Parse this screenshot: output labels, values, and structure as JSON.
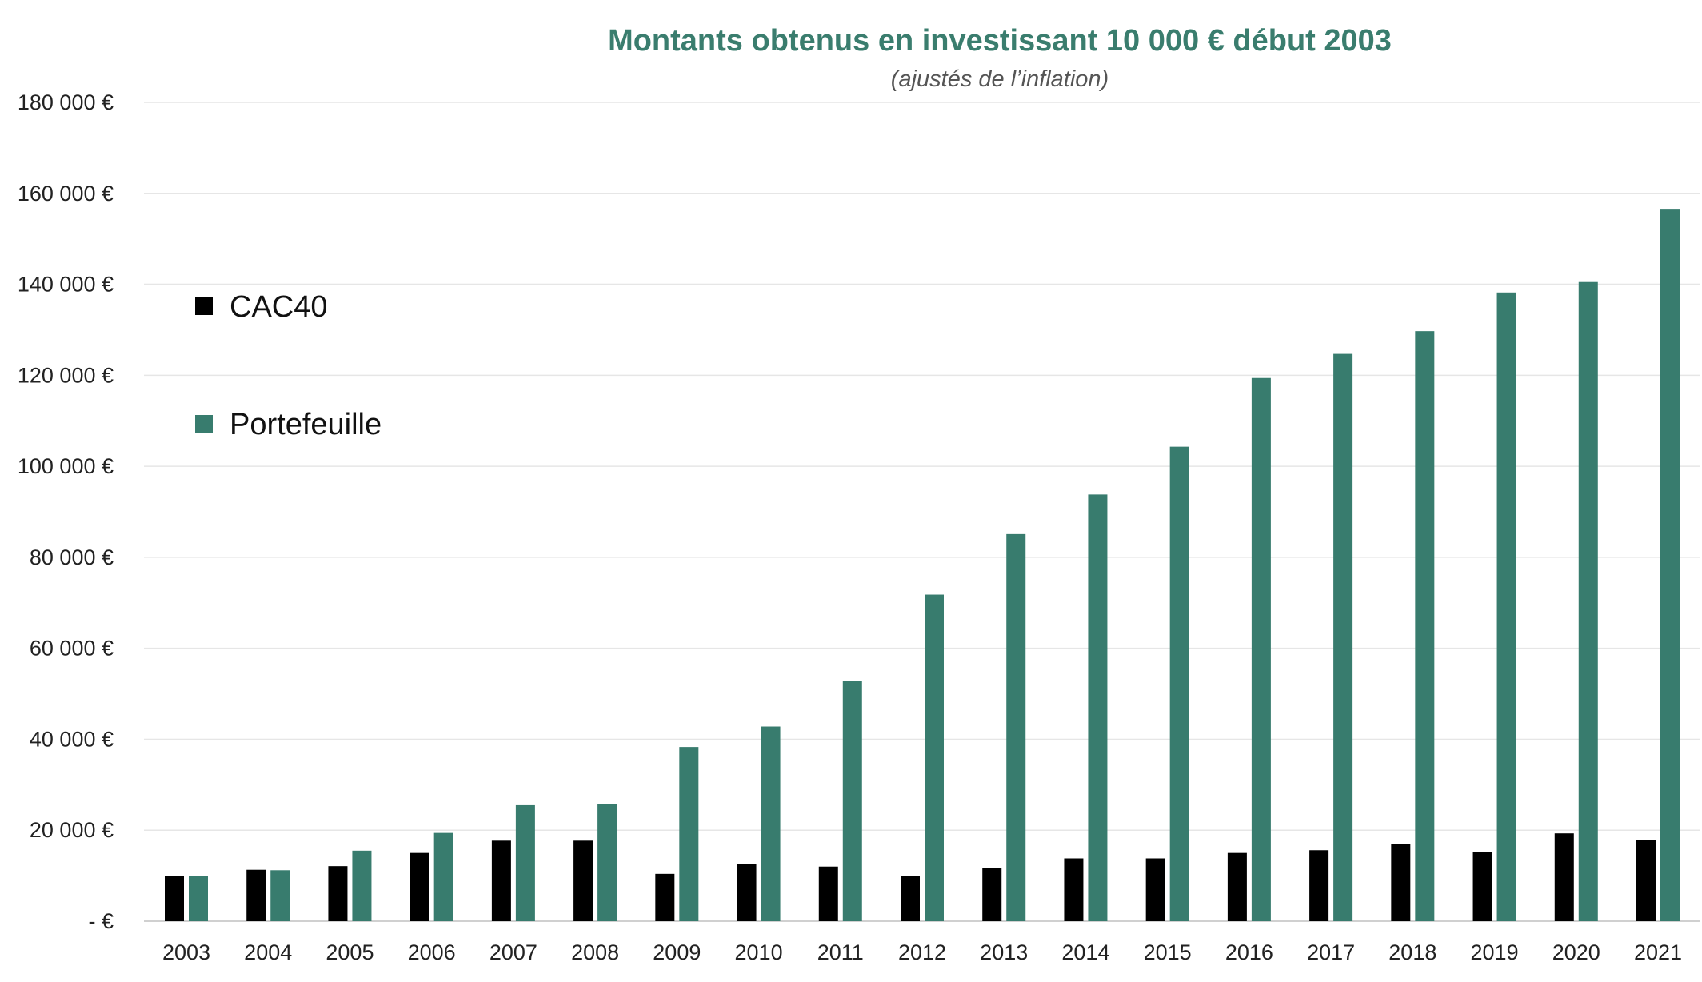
{
  "chart_data": {
    "type": "bar",
    "title": "Montants obtenus en investissant 10 000 € début 2003",
    "subtitle": "(ajustés de l’inflation)",
    "xlabel": "",
    "ylabel": "",
    "categories": [
      "2003",
      "2004",
      "2005",
      "2006",
      "2007",
      "2008",
      "2009",
      "2010",
      "2011",
      "2012",
      "2013",
      "2014",
      "2015",
      "2016",
      "2017",
      "2018",
      "2019",
      "2020",
      "2021"
    ],
    "series": [
      {
        "name": "CAC40",
        "color": "#000000",
        "values": [
          10000,
          11300,
          12100,
          15000,
          17700,
          17700,
          10400,
          12500,
          12000,
          10000,
          11700,
          13800,
          13800,
          15000,
          15600,
          16900,
          15200,
          19300,
          17900
        ]
      },
      {
        "name": "Portefeuille",
        "color": "#387c6e",
        "values": [
          10000,
          11200,
          15500,
          19400,
          25500,
          25700,
          38300,
          42800,
          52800,
          71800,
          85100,
          93800,
          104300,
          119400,
          124700,
          129700,
          138200,
          140500,
          156600
        ]
      }
    ],
    "ylim": [
      0,
      180000
    ],
    "yticks": [
      0,
      20000,
      40000,
      60000,
      80000,
      100000,
      120000,
      140000,
      160000,
      180000
    ],
    "ytick_labels": [
      "-  €",
      "20 000 €",
      "40 000 €",
      "60 000 €",
      "80 000 €",
      "100 000 €",
      "120 000 €",
      "140 000 €",
      "160 000 €",
      "180 000 €"
    ],
    "grid": true,
    "legend_position": "left"
  }
}
